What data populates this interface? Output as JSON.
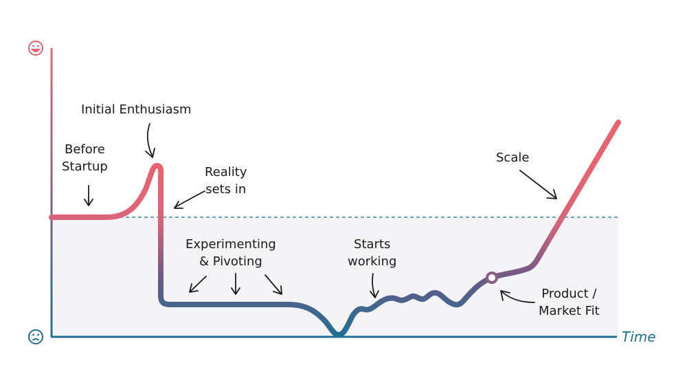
{
  "x_axis_label": "Time",
  "y_axis": {
    "top_icon": "happy-face-icon",
    "bottom_icon": "sad-face-icon"
  },
  "annotations": {
    "initial_enthusiasm": "Initial Enthusiasm",
    "before_startup": [
      "Before",
      "Startup"
    ],
    "reality_sets_in": [
      "Reality",
      "sets in"
    ],
    "experimenting": [
      "Experimenting",
      "& Pivoting"
    ],
    "starts_working": [
      "Starts",
      "working"
    ],
    "scale": "Scale",
    "product_market_fit": [
      "Product /",
      "Market Fit"
    ]
  },
  "colors": {
    "happy": "#e8636f",
    "sad": "#1f6f93",
    "baseline_zone": "#f4f4f7",
    "dashed_line": "#1f6f93",
    "arrow": "#1a1a1a"
  }
}
